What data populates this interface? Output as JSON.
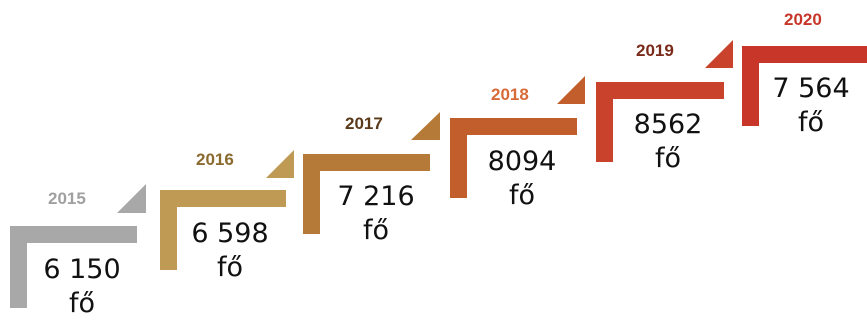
{
  "steps": [
    {
      "year": "2015",
      "value": "6 150",
      "unit": "fő",
      "color": "#a8a8a8",
      "year_color": "#a0a0a0"
    },
    {
      "year": "2016",
      "value": "6 598",
      "unit": "fő",
      "color": "#bf9a54",
      "year_color": "#8a6a2e"
    },
    {
      "year": "2017",
      "value": "7 216",
      "unit": "fő",
      "color": "#b67a38",
      "year_color": "#5a3a1a"
    },
    {
      "year": "2018",
      "value": "8094",
      "unit": "fő",
      "color": "#c25e2c",
      "year_color": "#d86a3a"
    },
    {
      "year": "2019",
      "value": "8562",
      "unit": "fő",
      "color": "#c8422c",
      "year_color": "#7a2a1a"
    },
    {
      "year": "2020",
      "value": "7 564",
      "unit": "fő",
      "color": "#c73628",
      "year_color": "#c73628"
    }
  ]
}
